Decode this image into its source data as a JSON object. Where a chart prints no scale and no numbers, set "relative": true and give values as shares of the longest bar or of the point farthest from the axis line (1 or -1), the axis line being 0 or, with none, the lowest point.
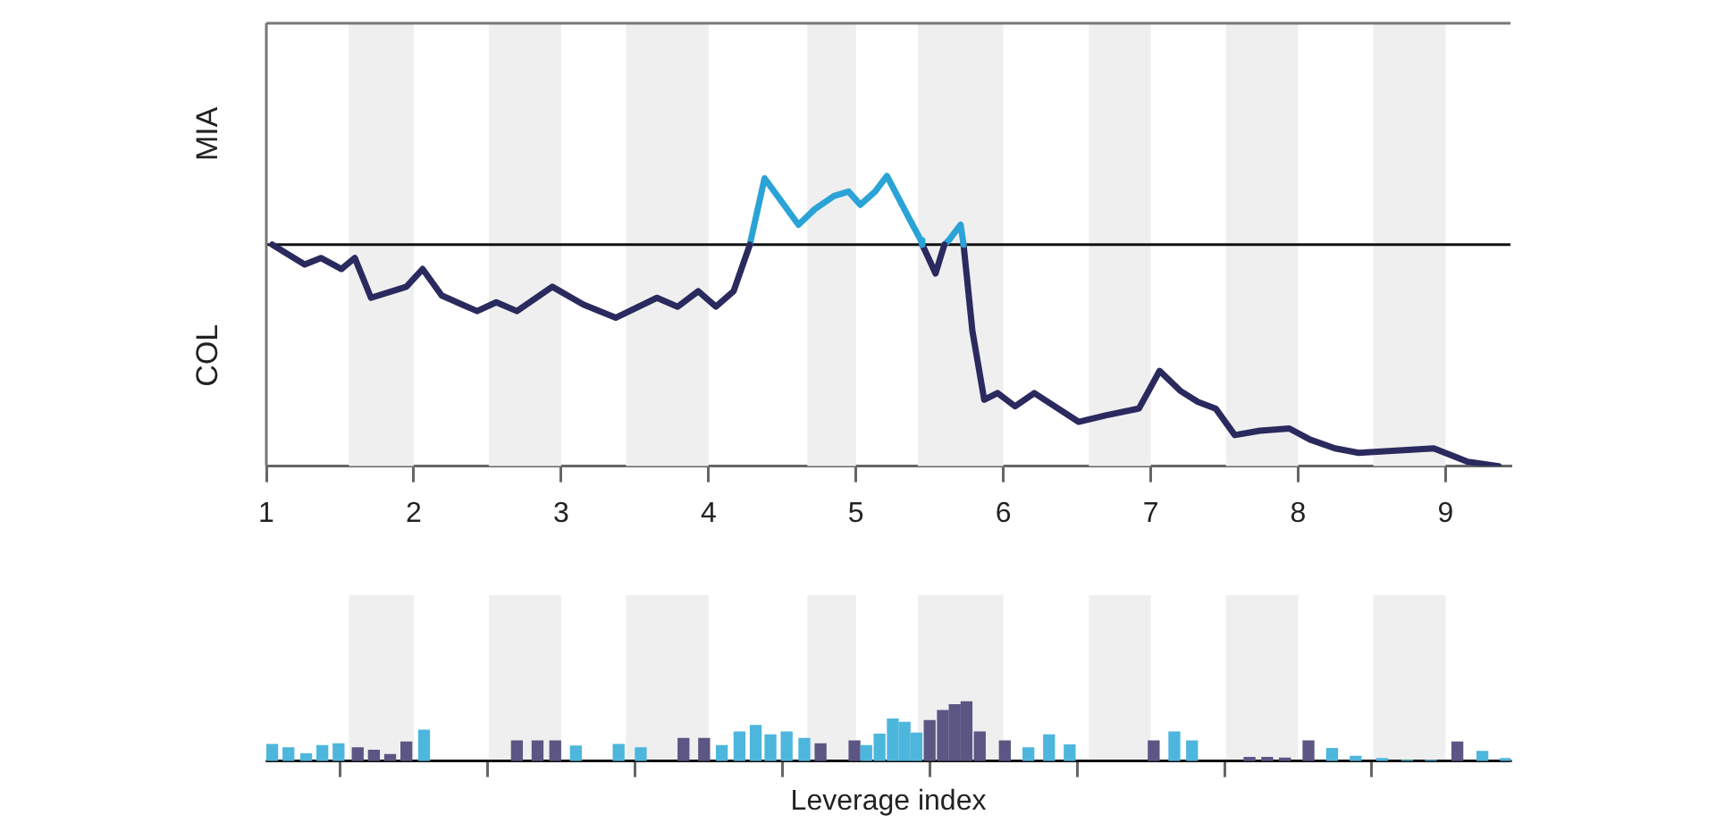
{
  "chart_data": [
    {
      "type": "line",
      "relative": true,
      "annotations": [
        "MIA",
        "COL"
      ],
      "legend": false,
      "grid": false,
      "xlim": [
        1,
        9.44
      ],
      "xticks": [
        1,
        2,
        3,
        4,
        5,
        6,
        7,
        8,
        9
      ],
      "bands": [
        {
          "axis": "x",
          "from": 1.56,
          "to": 2,
          "color": "#efefef"
        },
        {
          "axis": "x",
          "from": 2.51,
          "to": 3,
          "color": "#efefef"
        },
        {
          "axis": "x",
          "from": 3.44,
          "to": 4,
          "color": "#efefef"
        },
        {
          "axis": "x",
          "from": 4.67,
          "to": 5,
          "color": "#efefef"
        },
        {
          "axis": "x",
          "from": 5.42,
          "to": 6,
          "color": "#efefef"
        },
        {
          "axis": "x",
          "from": 6.58,
          "to": 7,
          "color": "#efefef"
        },
        {
          "axis": "x",
          "from": 7.51,
          "to": 8,
          "color": "#efefef"
        },
        {
          "axis": "x",
          "from": 8.51,
          "to": 9,
          "color": "#efefef"
        }
      ],
      "series": [
        {
          "type": "line",
          "color": "#2b2a5e",
          "x": [
            1.04,
            1.26,
            1.37,
            1.51,
            1.6,
            1.71,
            1.95,
            2.06,
            2.19,
            2.43,
            2.56,
            2.7,
            2.94,
            3.15,
            3.37,
            3.65,
            3.79,
            3.93,
            4.05,
            4.17,
            4.28
          ],
          "values": [
            0,
            -0.09,
            -0.06,
            -0.11,
            -0.06,
            -0.24,
            -0.19,
            -0.11,
            -0.23,
            -0.3,
            -0.26,
            -0.3,
            -0.19,
            -0.27,
            -0.33,
            -0.24,
            -0.28,
            -0.21,
            -0.28,
            -0.21,
            0
          ]
        },
        {
          "type": "line",
          "color": "#2aa3d6",
          "x": [
            4.28,
            4.38,
            4.61,
            4.72,
            4.85,
            4.95,
            5.03,
            5.13,
            5.21,
            5.36,
            5.44,
            5.45
          ],
          "values": [
            0,
            0.3,
            0.09,
            0.16,
            0.22,
            0.24,
            0.18,
            0.24,
            0.31,
            0.12,
            0.02,
            0
          ]
        },
        {
          "type": "line",
          "color": "#2b2a5e",
          "x": [
            5.45,
            5.54,
            5.6
          ],
          "values": [
            0,
            -0.13,
            0
          ]
        },
        {
          "type": "line",
          "color": "#2aa3d6",
          "x": [
            5.6,
            5.63,
            5.71,
            5.73
          ],
          "values": [
            0,
            0.02,
            0.09,
            0
          ]
        },
        {
          "type": "line",
          "color": "#2b2a5e",
          "x": [
            5.73,
            5.79,
            5.87,
            5.96,
            6.08,
            6.21,
            6.51,
            6.7,
            6.92,
            7.06,
            7.2,
            7.32,
            7.44,
            7.57,
            7.74,
            7.94,
            8.08,
            8.25,
            8.41,
            8.92,
            9.15,
            9.36
          ],
          "values": [
            0,
            -0.39,
            -0.7,
            -0.67,
            -0.73,
            -0.67,
            -0.8,
            -0.77,
            -0.74,
            -0.57,
            -0.66,
            -0.71,
            -0.74,
            -0.86,
            -0.84,
            -0.83,
            -0.88,
            -0.92,
            -0.94,
            -0.92,
            -0.98,
            -1
          ]
        }
      ]
    },
    {
      "type": "bar",
      "relative": true,
      "xlabel": "Leverage index",
      "legend": false,
      "grid": false,
      "tick_labels": false,
      "xlim": [
        1,
        9.44
      ],
      "xticks": [
        1,
        2,
        3,
        4,
        5,
        6,
        7,
        8,
        9
      ],
      "bands": [
        {
          "axis": "x",
          "from": 1.56,
          "to": 2,
          "color": "#efefef"
        },
        {
          "axis": "x",
          "from": 2.51,
          "to": 3,
          "color": "#efefef"
        },
        {
          "axis": "x",
          "from": 3.44,
          "to": 4,
          "color": "#efefef"
        },
        {
          "axis": "x",
          "from": 4.67,
          "to": 5,
          "color": "#efefef"
        },
        {
          "axis": "x",
          "from": 5.42,
          "to": 6,
          "color": "#efefef"
        },
        {
          "axis": "x",
          "from": 6.58,
          "to": 7,
          "color": "#efefef"
        },
        {
          "axis": "x",
          "from": 7.51,
          "to": 8,
          "color": "#efefef"
        },
        {
          "axis": "x",
          "from": 8.51,
          "to": 9,
          "color": "#efefef"
        }
      ],
      "x": [
        1.04,
        1.15,
        1.27,
        1.38,
        1.49,
        1.62,
        1.73,
        1.84,
        1.95,
        2.07,
        2.2,
        2.32,
        2.46,
        2.58,
        2.7,
        2.84,
        2.96,
        3.1,
        3.24,
        3.39,
        3.54,
        3.68,
        3.83,
        3.97,
        4.09,
        4.21,
        4.32,
        4.42,
        4.53,
        4.65,
        4.76,
        4.87,
        4.99,
        5.07,
        5.16,
        5.25,
        5.33,
        5.41,
        5.5,
        5.59,
        5.67,
        5.75,
        5.84,
        5.93,
        6.01,
        6.17,
        6.31,
        6.45,
        6.59,
        6.75,
        6.89,
        7.02,
        7.16,
        7.28,
        7.41,
        7.54,
        7.67,
        7.79,
        7.91,
        8.07,
        8.23,
        8.39,
        8.57,
        8.74,
        8.9,
        9.08,
        9.25,
        9.41
      ],
      "values": [
        0.28,
        0.22,
        0.12,
        0.26,
        0.29,
        0.22,
        0.18,
        0.11,
        0.32,
        0.52,
        null,
        null,
        null,
        null,
        0.34,
        0.34,
        0.34,
        0.25,
        null,
        0.28,
        0.22,
        null,
        0.38,
        0.38,
        0.26,
        0.49,
        0.6,
        0.44,
        0.49,
        0.38,
        0.29,
        null,
        0.34,
        0.26,
        0.45,
        0.71,
        0.65,
        0.47,
        0.68,
        0.85,
        0.95,
        1,
        0.49,
        null,
        0.34,
        0.22,
        0.44,
        0.27,
        null,
        null,
        null,
        0.34,
        0.49,
        0.34,
        null,
        null,
        0.06,
        0.06,
        0.05,
        0.34,
        0.21,
        0.08,
        0.04,
        0.01,
        0.01,
        0.32,
        0.16,
        0.04
      ],
      "colors": [
        "#4db6dd",
        "#4db6dd",
        "#4db6dd",
        "#4db6dd",
        "#4db6dd",
        "#5b5683",
        "#5b5683",
        "#5b5683",
        "#5b5683",
        "#4db6dd",
        "#4db6dd",
        "#4db6dd",
        "#4db6dd",
        "#4db6dd",
        "#5b5683",
        "#5b5683",
        "#5b5683",
        "#4db6dd",
        "#4db6dd",
        "#4db6dd",
        "#4db6dd",
        "#4db6dd",
        "#5b5683",
        "#5b5683",
        "#4db6dd",
        "#4db6dd",
        "#4db6dd",
        "#4db6dd",
        "#4db6dd",
        "#4db6dd",
        "#5b5683",
        "#5b5683",
        "#5b5683",
        "#4db6dd",
        "#4db6dd",
        "#4db6dd",
        "#4db6dd",
        "#4db6dd",
        "#5b5683",
        "#5b5683",
        "#5b5683",
        "#5b5683",
        "#5b5683",
        "#5b5683",
        "#5b5683",
        "#4db6dd",
        "#4db6dd",
        "#4db6dd",
        "#4db6dd",
        "#4db6dd",
        "#4db6dd",
        "#5b5683",
        "#4db6dd",
        "#4db6dd",
        "#4db6dd",
        "#4db6dd",
        "#5b5683",
        "#5b5683",
        "#5b5683",
        "#5b5683",
        "#4db6dd",
        "#4db6dd",
        "#4db6dd",
        "#4db6dd",
        "#4db6dd",
        "#5b5683",
        "#4db6dd",
        "#4db6dd"
      ]
    }
  ]
}
